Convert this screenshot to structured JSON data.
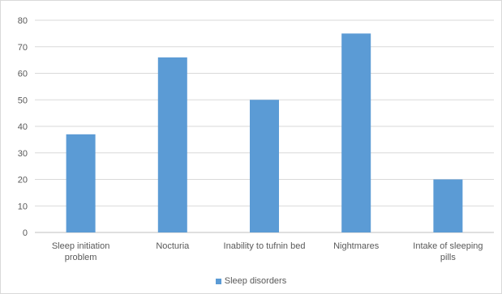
{
  "chart_data": {
    "type": "bar",
    "title": "",
    "xlabel": "",
    "ylabel": "",
    "ylim": [
      0,
      80
    ],
    "yticks": [
      0,
      10,
      20,
      30,
      40,
      50,
      60,
      70,
      80
    ],
    "categories": [
      [
        "Sleep initiation",
        "problem"
      ],
      [
        "Nocturia"
      ],
      [
        "Inability to tufnin bed"
      ],
      [
        "Nightmares"
      ],
      [
        "Intake of sleeping",
        "pills"
      ]
    ],
    "series": [
      {
        "name": "Sleep disorders",
        "values": [
          37,
          66,
          50,
          75,
          20
        ]
      }
    ],
    "grid": true,
    "legend_position": "bottom",
    "colors": {
      "bar": "#5b9bd5",
      "grid": "#d9d9d9",
      "axis": "#bfbfbf",
      "text": "#595959"
    }
  }
}
